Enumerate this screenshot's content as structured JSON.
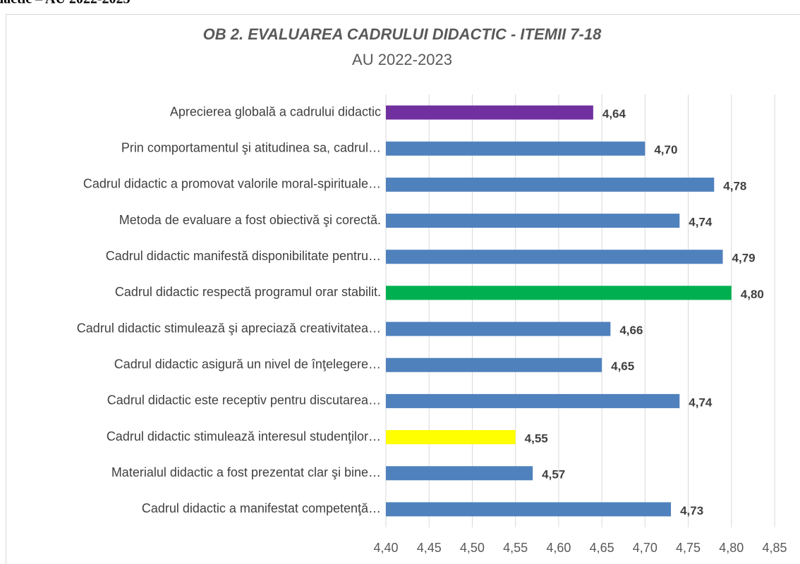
{
  "page_header": "dactic – AU 2022-2023",
  "chart_data": {
    "type": "barh",
    "title": "OB 2. EVALUAREA CADRULUI DIDACTIC - ITEMII 7-18",
    "subtitle": "AU 2022-2023",
    "categories": [
      "Aprecierea globală a cadrului didactic",
      "Prin comportamentul şi atitudinea sa, cadrul…",
      "Cadrul didactic a promovat valorile moral-spirituale…",
      "Metoda de evaluare a fost obiectivă şi corectă.",
      "Cadrul didactic manifestă disponibilitate pentru…",
      "Cadrul didactic respectă programul orar stabilit.",
      "Cadrul didactic stimulează şi apreciază creativitatea…",
      "Cadrul didactic asigură un nivel de înţelegere…",
      "Cadrul didactic este receptiv pentru discutarea…",
      "Cadrul didactic stimulează interesul studenţilor…",
      "Materialul didactic a fost prezentat clar şi bine…",
      "Cadrul didactic a manifestat competenţă…"
    ],
    "values": [
      4.64,
      4.7,
      4.78,
      4.74,
      4.79,
      4.8,
      4.66,
      4.65,
      4.74,
      4.55,
      4.57,
      4.73
    ],
    "value_labels": [
      "4,64",
      "4,70",
      "4,78",
      "4,74",
      "4,79",
      "4,80",
      "4,66",
      "4,65",
      "4,74",
      "4,55",
      "4,57",
      "4,73"
    ],
    "colors": [
      "#7030a0",
      "#4f81bd",
      "#4f81bd",
      "#4f81bd",
      "#4f81bd",
      "#00b050",
      "#4f81bd",
      "#4f81bd",
      "#4f81bd",
      "#ffff00",
      "#4f81bd",
      "#4f81bd"
    ],
    "xlim": [
      4.4,
      4.85
    ],
    "xticks": [
      {
        "value": 4.4,
        "label": "4,40"
      },
      {
        "value": 4.45,
        "label": "4,45"
      },
      {
        "value": 4.5,
        "label": "4,50"
      },
      {
        "value": 4.55,
        "label": "4,55"
      },
      {
        "value": 4.6,
        "label": "4,60"
      },
      {
        "value": 4.65,
        "label": "4,65"
      },
      {
        "value": 4.7,
        "label": "4,70"
      },
      {
        "value": 4.75,
        "label": "4,75"
      },
      {
        "value": 4.8,
        "label": "4,80"
      },
      {
        "value": 4.85,
        "label": "4,85"
      }
    ],
    "grid": true
  }
}
